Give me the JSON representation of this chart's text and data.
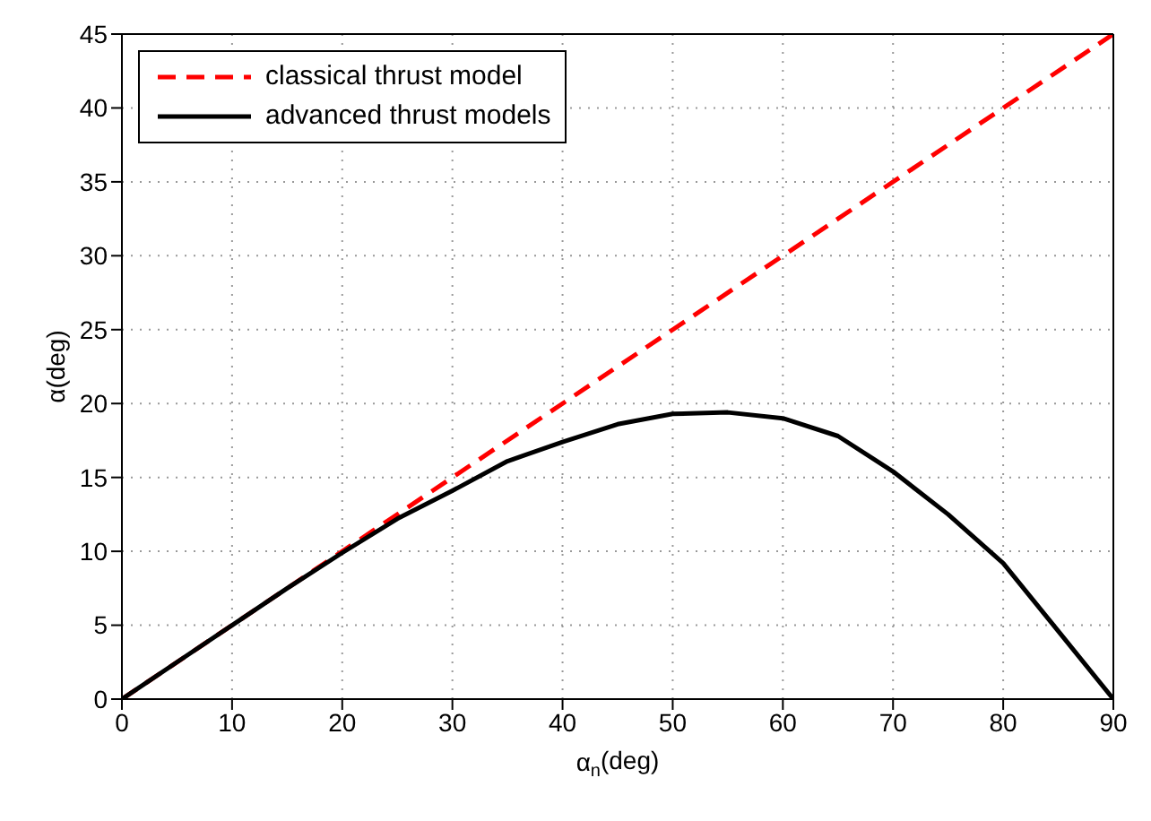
{
  "chart_data": {
    "type": "line",
    "xlabel": "α$_{n}$(deg)",
    "ylabel": "α(deg)",
    "xlim": [
      0,
      90
    ],
    "ylim": [
      0,
      45
    ],
    "xticks": [
      0,
      10,
      20,
      30,
      40,
      50,
      60,
      70,
      80,
      90
    ],
    "yticks": [
      0,
      5,
      10,
      15,
      20,
      25,
      30,
      35,
      40,
      45
    ],
    "grid": true,
    "legend": "top left",
    "marker": "none",
    "series": [
      {
        "name": "classical thrust model",
        "color": "#ff0000",
        "line_style": "dashed",
        "x": [
          0,
          90
        ],
        "values": [
          0,
          45
        ]
      },
      {
        "name": "advanced thrust models",
        "color": "#000000",
        "line_style": "solid",
        "x": [
          0,
          5,
          10,
          15,
          20,
          25,
          30,
          35,
          40,
          45,
          50,
          55,
          60,
          65,
          70,
          75,
          80,
          85,
          90
        ],
        "values": [
          0,
          2.5,
          5,
          7.5,
          9.9,
          12.2,
          14.1,
          16.1,
          17.4,
          18.6,
          19.3,
          19.4,
          19.0,
          17.8,
          15.4,
          12.5,
          9.2,
          4.6,
          0
        ]
      }
    ]
  }
}
